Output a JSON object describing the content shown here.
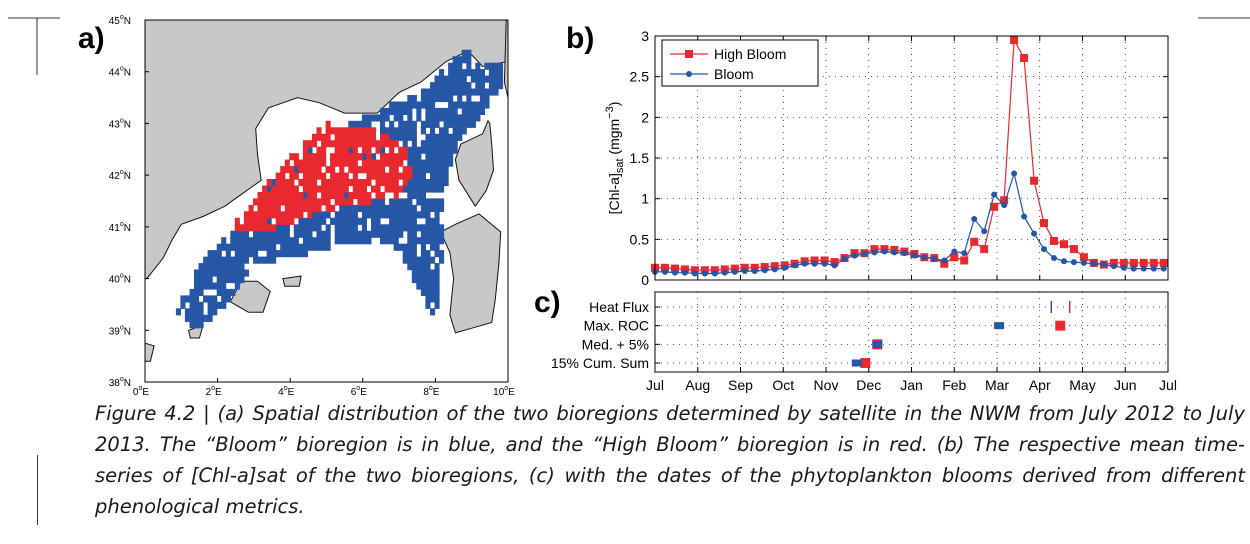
{
  "panels": {
    "a": "a)",
    "b": "b)",
    "c": "c)"
  },
  "colors": {
    "high_bloom": "#e8292f",
    "bloom": "#2656a6",
    "land": "#c8c8c8",
    "coast": "#111111"
  },
  "map": {
    "lat_ticks": [
      "45",
      "44",
      "43",
      "42",
      "41",
      "40",
      "39",
      "38"
    ],
    "lon_ticks": [
      "0",
      "2",
      "4",
      "6",
      "8",
      "10"
    ],
    "lat_suffix": "N",
    "lon_suffix": "E",
    "degree": "o"
  },
  "chart_data": [
    {
      "type": "line",
      "panel": "b",
      "ylabel_main": "[Chl-a]",
      "ylabel_sub": "sat",
      "ylabel_unit": "(mgm",
      "ylabel_exp": "−3",
      "ylabel_close": ")",
      "ylim": [
        0,
        3
      ],
      "yticks": [
        "0",
        "0.5",
        "1",
        "1.5",
        "2",
        "2.5",
        "3"
      ],
      "grid": "dotted",
      "legend_position": "top-left",
      "series": [
        {
          "name": "High Bloom",
          "color": "#e8292f",
          "marker": "square",
          "x": [
            0.0,
            0.233,
            0.467,
            0.7,
            0.933,
            1.167,
            1.4,
            1.633,
            1.867,
            2.1,
            2.333,
            2.567,
            2.8,
            3.033,
            3.267,
            3.5,
            3.733,
            3.967,
            4.2,
            4.433,
            4.667,
            4.9,
            5.133,
            5.367,
            5.6,
            5.833,
            6.067,
            6.3,
            6.533,
            6.767,
            7.0,
            7.233,
            7.467,
            7.7,
            7.933,
            8.167,
            8.4,
            8.633,
            8.867,
            9.1,
            9.333,
            9.567,
            9.8,
            10.033,
            10.267,
            10.5,
            10.733,
            10.967,
            11.2,
            11.433,
            11.667,
            11.9
          ],
          "values": [
            0.15,
            0.15,
            0.14,
            0.13,
            0.12,
            0.12,
            0.12,
            0.13,
            0.14,
            0.15,
            0.15,
            0.16,
            0.17,
            0.18,
            0.2,
            0.23,
            0.24,
            0.24,
            0.22,
            0.27,
            0.33,
            0.33,
            0.38,
            0.38,
            0.37,
            0.35,
            0.32,
            0.28,
            0.27,
            0.2,
            0.28,
            0.24,
            0.47,
            0.38,
            0.9,
            0.98,
            2.95,
            2.73,
            1.22,
            0.7,
            0.48,
            0.44,
            0.38,
            0.28,
            0.21,
            0.19,
            0.21,
            0.21,
            0.21,
            0.21,
            0.21,
            0.21
          ]
        },
        {
          "name": "Bloom",
          "color": "#2656a6",
          "marker": "dot",
          "x": [
            0.0,
            0.233,
            0.467,
            0.7,
            0.933,
            1.167,
            1.4,
            1.633,
            1.867,
            2.1,
            2.333,
            2.567,
            2.8,
            3.033,
            3.267,
            3.5,
            3.733,
            3.967,
            4.2,
            4.433,
            4.667,
            4.9,
            5.133,
            5.367,
            5.6,
            5.833,
            6.067,
            6.3,
            6.533,
            6.767,
            7.0,
            7.233,
            7.467,
            7.7,
            7.933,
            8.167,
            8.4,
            8.633,
            8.867,
            9.1,
            9.333,
            9.567,
            9.8,
            10.033,
            10.267,
            10.5,
            10.733,
            10.967,
            11.2,
            11.433,
            11.667,
            11.9
          ],
          "values": [
            0.1,
            0.1,
            0.09,
            0.09,
            0.08,
            0.08,
            0.08,
            0.09,
            0.1,
            0.11,
            0.11,
            0.12,
            0.13,
            0.15,
            0.18,
            0.2,
            0.2,
            0.2,
            0.18,
            0.26,
            0.3,
            0.32,
            0.34,
            0.35,
            0.34,
            0.33,
            0.3,
            0.28,
            0.26,
            0.24,
            0.35,
            0.33,
            0.75,
            0.6,
            1.05,
            0.92,
            1.31,
            0.78,
            0.57,
            0.38,
            0.27,
            0.23,
            0.22,
            0.21,
            0.2,
            0.19,
            0.17,
            0.15,
            0.14,
            0.14,
            0.14,
            0.14
          ]
        }
      ]
    },
    {
      "type": "scatter",
      "panel": "c",
      "categories": [
        "Heat Flux",
        "Max. ROC",
        "Med. + 5%",
        "15% Cum. Sum"
      ],
      "xticks": [
        "Jul",
        "Aug",
        "Sep",
        "Oct",
        "Nov",
        "Dec",
        "Jan",
        "Feb",
        "Mar",
        "Apr",
        "May",
        "Jun",
        "Jul"
      ],
      "grid": "dotted",
      "series": [
        {
          "name": "High Bloom",
          "color": "#e8292f",
          "x": [
            9.7,
            9.48,
            5.2,
            4.92
          ],
          "categories": [
            "Heat Flux",
            "Max. ROC",
            "Med. + 5%",
            "15% Cum. Sum"
          ]
        },
        {
          "name": "Bloom",
          "color": "#2656a6",
          "x": [
            9.27,
            8.05,
            5.2,
            4.72
          ],
          "categories": [
            "Heat Flux",
            "Max. ROC",
            "Med. + 5%",
            "15% Cum. Sum"
          ]
        }
      ]
    }
  ],
  "caption": "Figure 4.2 | (a) Spatial distribution of the two bioregions determined by satellite in the NWM from July 2012 to July 2013. The “Bloom” bioregion is in blue, and the “High Bloom” bioregion is in red. (b) The respective mean time-series of [Chl-a]sat of the two bioregions, (c) with the dates of the phytoplankton blooms derived from different phenological metrics."
}
